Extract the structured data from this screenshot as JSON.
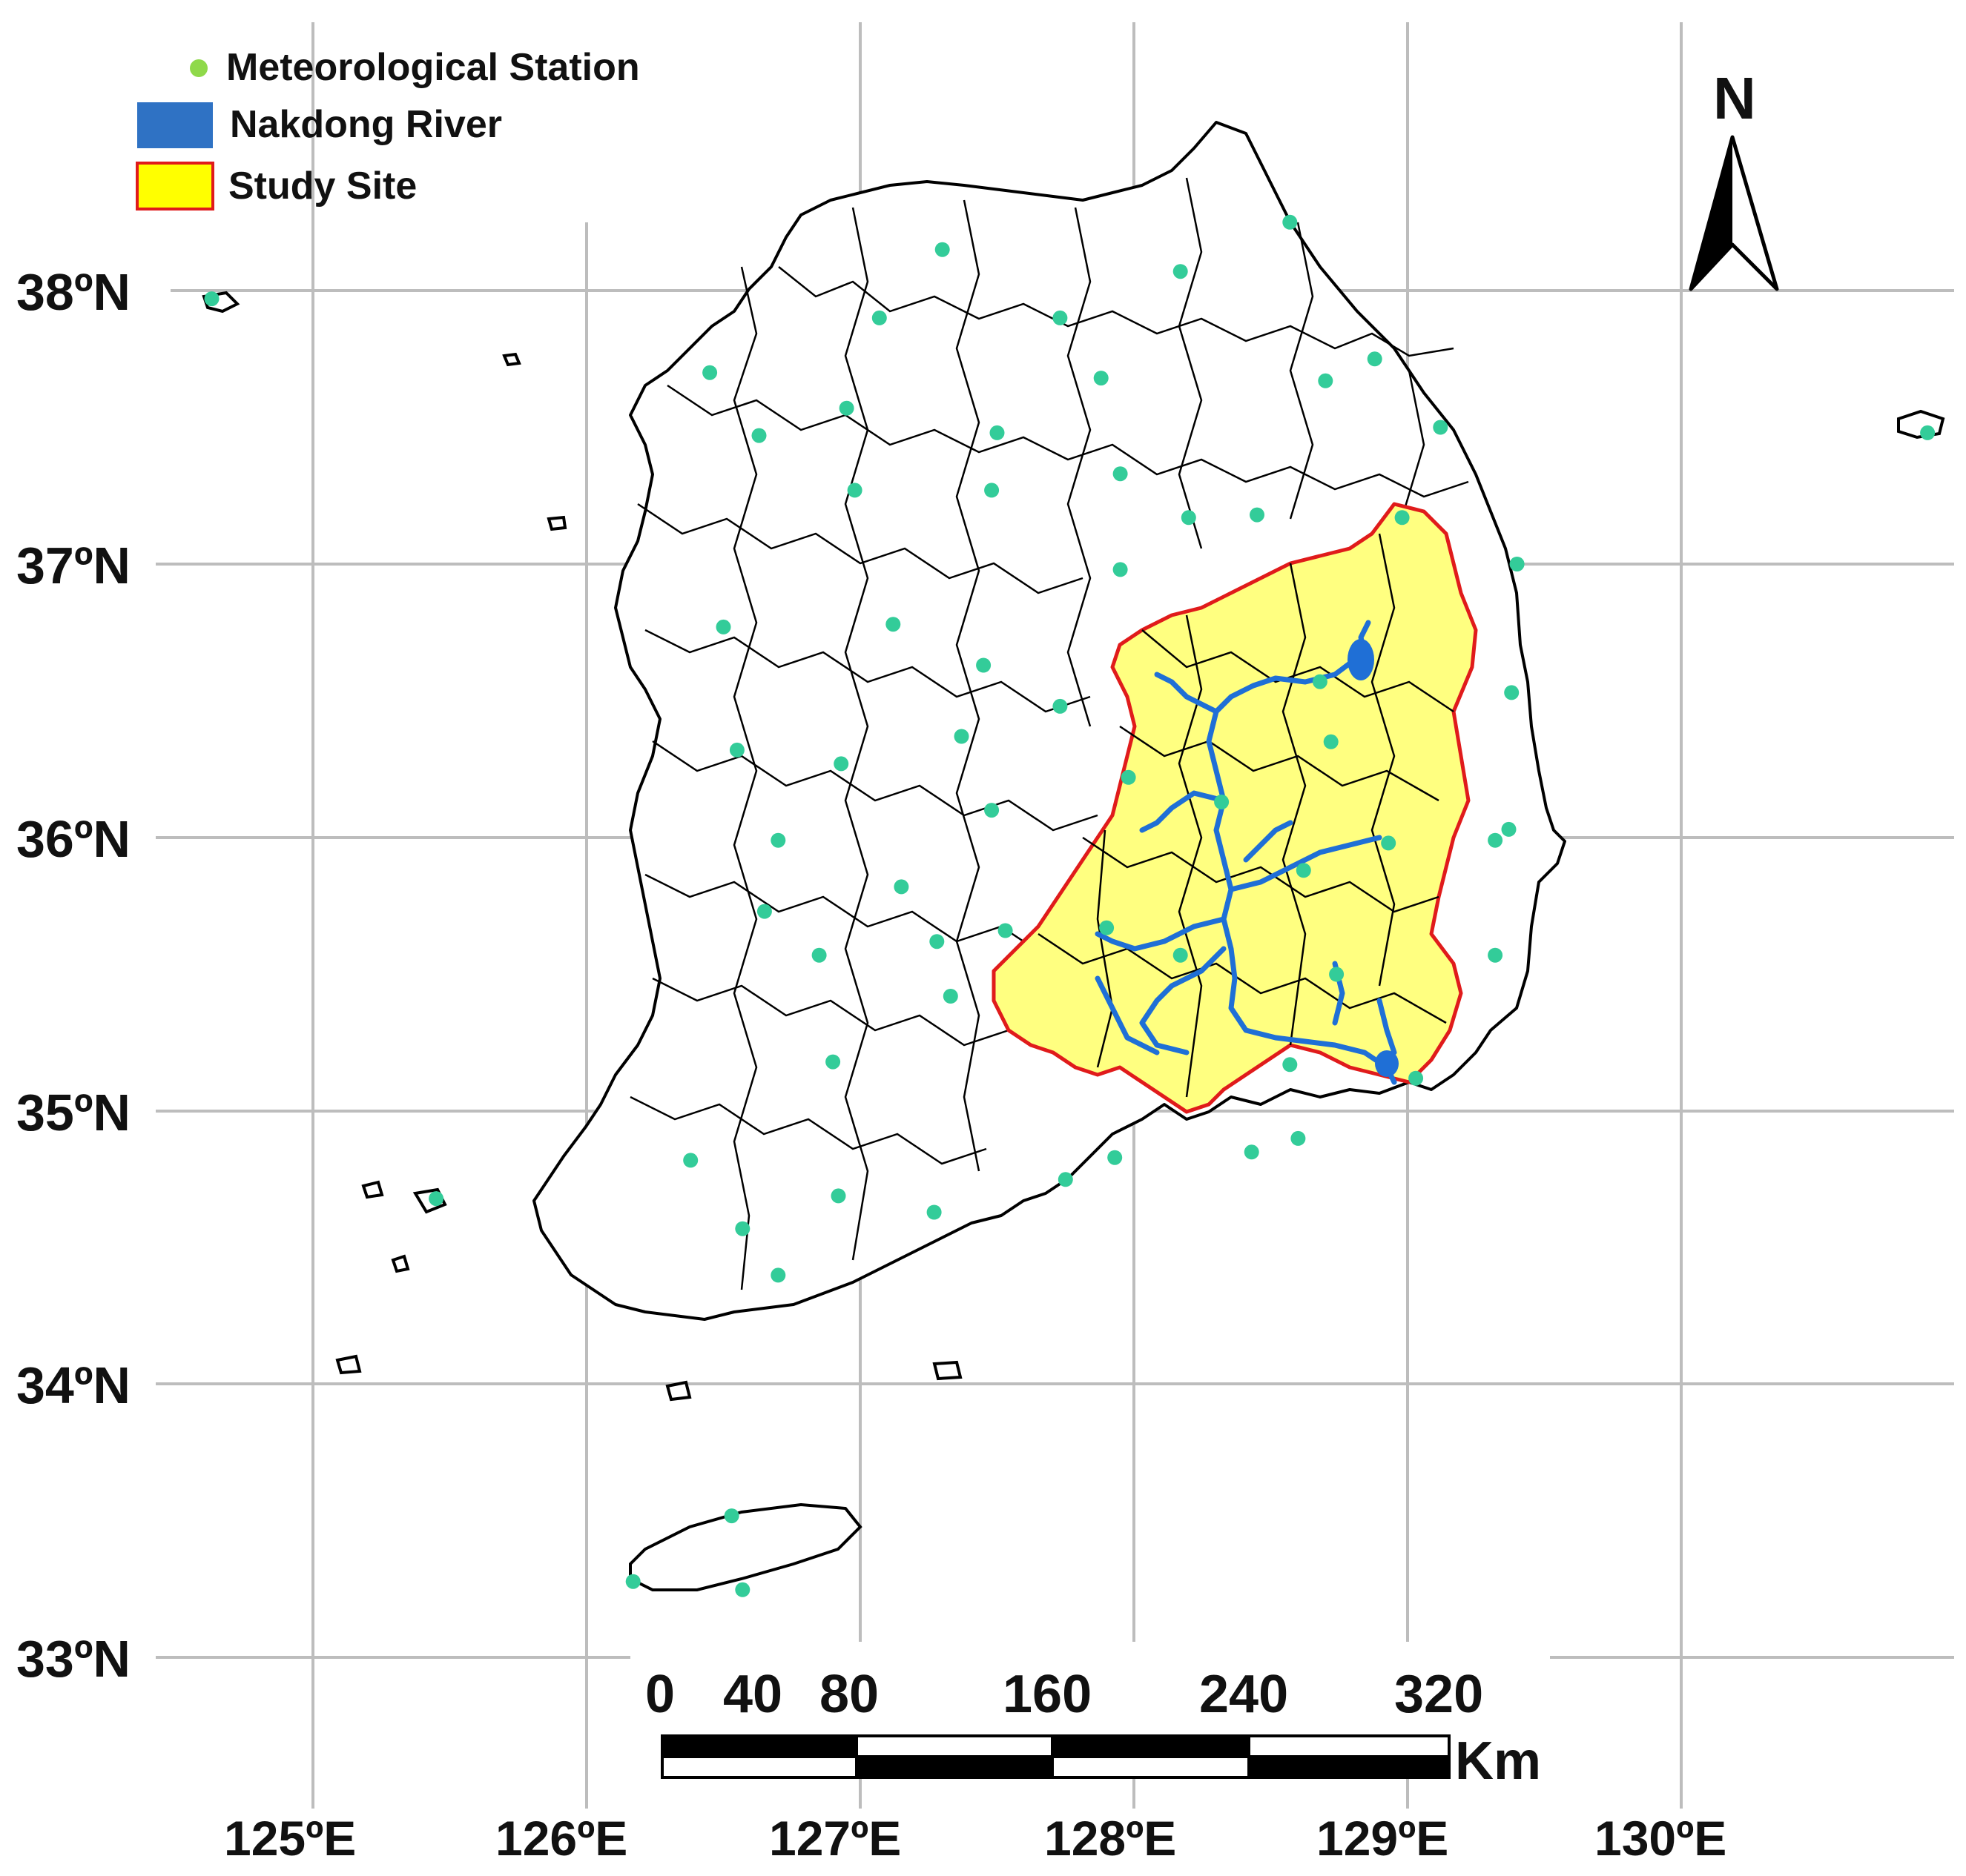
{
  "legend": {
    "station_label": "Meteorological Station",
    "river_label": "Nakdong River",
    "study_label": "Study Site"
  },
  "colors": {
    "station": "#33cc99",
    "river": "#1f6fd6",
    "study_fill": "#ffff80",
    "study_border": "#e01b1b",
    "grid": "#bdbdbd",
    "boundary": "#000000"
  },
  "north_arrow": {
    "label": "N"
  },
  "graticule": {
    "lat_labels": [
      "38ºN",
      "37ºN",
      "36ºN",
      "35ºN",
      "34ºN",
      "33ºN"
    ],
    "lon_labels": [
      "125ºE",
      "126ºE",
      "127ºE",
      "128ºE",
      "129ºE",
      "130ºE"
    ]
  },
  "scale_bar": {
    "labels": [
      "0",
      "40",
      "80",
      "160",
      "240",
      "320"
    ],
    "unit": "Km"
  },
  "stations": [
    {
      "lon": 124.63,
      "lat": 37.97
    },
    {
      "lon": 126.45,
      "lat": 37.7
    },
    {
      "lon": 126.63,
      "lat": 37.47
    },
    {
      "lon": 126.95,
      "lat": 37.57
    },
    {
      "lon": 127.07,
      "lat": 37.9
    },
    {
      "lon": 127.3,
      "lat": 38.15
    },
    {
      "lon": 127.73,
      "lat": 37.9
    },
    {
      "lon": 127.88,
      "lat": 37.68
    },
    {
      "lon": 128.17,
      "lat": 38.07
    },
    {
      "lon": 128.57,
      "lat": 38.25
    },
    {
      "lon": 128.7,
      "lat": 37.67
    },
    {
      "lon": 128.88,
      "lat": 37.75
    },
    {
      "lon": 129.12,
      "lat": 37.5
    },
    {
      "lon": 126.98,
      "lat": 37.27
    },
    {
      "lon": 127.48,
      "lat": 37.27
    },
    {
      "lon": 127.5,
      "lat": 37.48
    },
    {
      "lon": 127.95,
      "lat": 37.33
    },
    {
      "lon": 128.2,
      "lat": 37.17
    },
    {
      "lon": 128.45,
      "lat": 37.18
    },
    {
      "lon": 128.98,
      "lat": 37.17
    },
    {
      "lon": 129.4,
      "lat": 37.0
    },
    {
      "lon": 127.95,
      "lat": 36.98
    },
    {
      "lon": 126.5,
      "lat": 36.77
    },
    {
      "lon": 127.12,
      "lat": 36.78
    },
    {
      "lon": 127.45,
      "lat": 36.63
    },
    {
      "lon": 127.73,
      "lat": 36.48
    },
    {
      "lon": 128.68,
      "lat": 36.57
    },
    {
      "lon": 128.72,
      "lat": 36.35
    },
    {
      "lon": 129.38,
      "lat": 36.53
    },
    {
      "lon": 126.55,
      "lat": 36.32
    },
    {
      "lon": 126.93,
      "lat": 36.27
    },
    {
      "lon": 127.37,
      "lat": 36.37
    },
    {
      "lon": 127.48,
      "lat": 36.1
    },
    {
      "lon": 127.98,
      "lat": 36.22
    },
    {
      "lon": 128.32,
      "lat": 36.13
    },
    {
      "lon": 129.37,
      "lat": 36.03
    },
    {
      "lon": 126.7,
      "lat": 35.99
    },
    {
      "lon": 127.15,
      "lat": 35.82
    },
    {
      "lon": 126.65,
      "lat": 35.73
    },
    {
      "lon": 126.85,
      "lat": 35.57
    },
    {
      "lon": 127.28,
      "lat": 35.62
    },
    {
      "lon": 127.53,
      "lat": 35.66
    },
    {
      "lon": 127.9,
      "lat": 35.67
    },
    {
      "lon": 128.17,
      "lat": 35.57
    },
    {
      "lon": 128.62,
      "lat": 35.88
    },
    {
      "lon": 128.93,
      "lat": 35.98
    },
    {
      "lon": 129.32,
      "lat": 35.57
    },
    {
      "lon": 127.33,
      "lat": 35.42
    },
    {
      "lon": 128.74,
      "lat": 35.5
    },
    {
      "lon": 126.9,
      "lat": 35.18
    },
    {
      "lon": 128.57,
      "lat": 35.17
    },
    {
      "lon": 129.03,
      "lat": 35.12
    },
    {
      "lon": 126.38,
      "lat": 34.82
    },
    {
      "lon": 125.45,
      "lat": 34.68
    },
    {
      "lon": 126.57,
      "lat": 34.57
    },
    {
      "lon": 126.7,
      "lat": 34.4
    },
    {
      "lon": 126.92,
      "lat": 34.69
    },
    {
      "lon": 127.27,
      "lat": 34.63
    },
    {
      "lon": 127.75,
      "lat": 34.75
    },
    {
      "lon": 127.93,
      "lat": 34.83
    },
    {
      "lon": 128.43,
      "lat": 34.85
    },
    {
      "lon": 128.6,
      "lat": 34.9
    },
    {
      "lon": 129.32,
      "lat": 35.99
    },
    {
      "lon": 130.9,
      "lat": 37.48
    },
    {
      "lon": 126.53,
      "lat": 33.52
    },
    {
      "lon": 126.17,
      "lat": 33.28
    },
    {
      "lon": 126.57,
      "lat": 33.25
    }
  ]
}
